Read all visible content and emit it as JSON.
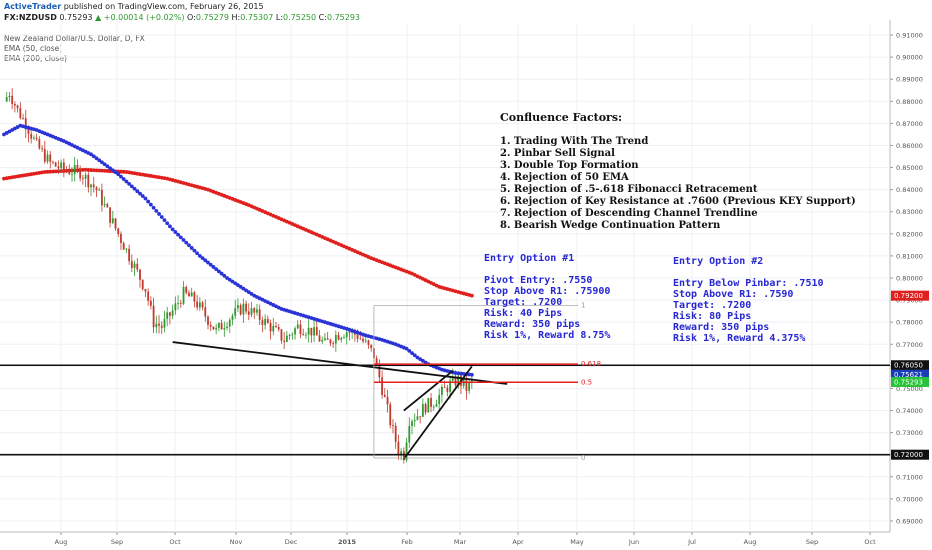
{
  "header": {
    "publisher": "ActiveTrader",
    "published_text": "published on TradingView.com, February 26, 2015",
    "symbol": "FX:NZDUSD",
    "last": "0.75293",
    "change": "+0.00014 (+0.02%)",
    "open_label": "O:",
    "open": "0.75279",
    "high_label": "H:",
    "high": "0.75307",
    "low_label": "L:",
    "low": "0.75250",
    "close_label": "C:",
    "close": "0.75293"
  },
  "legend": {
    "title": "New Zealand Dollar/U.S. Dollar, D, FX",
    "ema50": "EMA (50, close)",
    "ema200": "EMA (200, close)"
  },
  "confluence": {
    "title": "Confluence Factors:",
    "items": [
      "1. Trading With The Trend",
      "2. Pinbar Sell Signal",
      "3. Double Top Formation",
      "4. Rejection of 50 EMA",
      "5. Rejection of .5-.618 Fibonacci Retracement",
      "6. Rejection of Key Resistance at .7600 (Previous KEY Support)",
      "7. Rejection of Descending Channel Trendline",
      "8. Bearish Wedge Continuation Pattern"
    ]
  },
  "entry1": {
    "title": "Entry Option #1",
    "lines": [
      "Pivot Entry: .7550",
      "Stop Above R1: .75900",
      "Target: .7200",
      "Risk: 40 Pips",
      "Reward: 350 pips",
      "Risk 1%, Reward 8.75%"
    ]
  },
  "entry2": {
    "title": "Entry Option #2",
    "lines": [
      "Entry Below Pinbar: .7510",
      "Stop Above R1: .7590",
      "Target: .7200",
      "Risk: 80 Pips",
      "Reward: 350 pips",
      "Risk 1%, Reward 4.375%"
    ]
  },
  "colors": {
    "ema50": "#2a34d6",
    "ema200": "#e0201e",
    "up_candle": "#2e9a2e",
    "down_candle": "#c0392b",
    "resistance": "#111111",
    "fib": "#e02020",
    "last_price": "#29c23a",
    "ema50_tag": "#1a3db8",
    "ema200_tag": "#e0201e"
  },
  "chart_data": {
    "type": "candlestick",
    "symbol": "NZDUSD",
    "timeframe": "D",
    "y_axis": {
      "min": 0.685,
      "max": 0.915,
      "ticks": [
        "0.91000",
        "0.90000",
        "0.89000",
        "0.88000",
        "0.87000",
        "0.86000",
        "0.85000",
        "0.84000",
        "0.83000",
        "0.82000",
        "0.81000",
        "0.80000",
        "0.79000",
        "0.78000",
        "0.77000",
        "0.76000",
        "0.75000",
        "0.74000",
        "0.73000",
        "0.72000",
        "0.71000",
        "0.70000",
        "0.69000"
      ]
    },
    "x_axis": {
      "ticks": [
        "Aug",
        "Sep",
        "Oct",
        "Nov",
        "Dec",
        "2015",
        "Feb",
        "Mar",
        "Apr",
        "May",
        "Jun",
        "Jul",
        "Aug",
        "Sep",
        "Oct"
      ]
    },
    "price_tags": [
      {
        "label": "0.79200",
        "value": 0.792,
        "kind": "ema200"
      },
      {
        "label": "0.76050",
        "value": 0.7605,
        "kind": "line"
      },
      {
        "label": "0.75621",
        "value": 0.75621,
        "kind": "ema50"
      },
      {
        "label": "0.75293",
        "value": 0.75293,
        "kind": "last"
      },
      {
        "label": "0.72000",
        "value": 0.72,
        "kind": "line"
      }
    ],
    "horizontal_lines": [
      {
        "name": "key-resistance",
        "value": 0.7605
      },
      {
        "name": "target-support",
        "value": 0.72
      }
    ],
    "fibonacci": [
      {
        "label": "1",
        "value": 0.7875
      },
      {
        "label": "0.618",
        "value": 0.761
      },
      {
        "label": "0.5",
        "value": 0.7528
      },
      {
        "label": "0",
        "value": 0.7185
      }
    ],
    "ema50": [
      [
        0,
        0.865
      ],
      [
        6,
        0.869
      ],
      [
        12,
        0.867
      ],
      [
        22,
        0.862
      ],
      [
        32,
        0.856
      ],
      [
        42,
        0.847
      ],
      [
        52,
        0.836
      ],
      [
        62,
        0.822
      ],
      [
        72,
        0.81
      ],
      [
        82,
        0.8
      ],
      [
        92,
        0.792
      ],
      [
        102,
        0.786
      ],
      [
        110,
        0.783
      ],
      [
        118,
        0.78
      ],
      [
        126,
        0.777
      ],
      [
        133,
        0.774
      ],
      [
        139,
        0.772
      ],
      [
        144,
        0.77
      ],
      [
        148,
        0.768
      ],
      [
        152,
        0.764
      ],
      [
        156,
        0.761
      ],
      [
        161,
        0.7585
      ],
      [
        166,
        0.757
      ],
      [
        172,
        0.7562
      ]
    ],
    "ema200": [
      [
        0,
        0.845
      ],
      [
        15,
        0.848
      ],
      [
        30,
        0.849
      ],
      [
        45,
        0.848
      ],
      [
        60,
        0.845
      ],
      [
        75,
        0.84
      ],
      [
        90,
        0.833
      ],
      [
        105,
        0.825
      ],
      [
        120,
        0.817
      ],
      [
        135,
        0.809
      ],
      [
        150,
        0.802
      ],
      [
        160,
        0.796
      ],
      [
        172,
        0.792
      ]
    ],
    "closes_anchor": [
      [
        0,
        0.88
      ],
      [
        2,
        0.884
      ],
      [
        5,
        0.876
      ],
      [
        8,
        0.87
      ],
      [
        12,
        0.86
      ],
      [
        17,
        0.852
      ],
      [
        22,
        0.849
      ],
      [
        28,
        0.848
      ],
      [
        34,
        0.84
      ],
      [
        40,
        0.825
      ],
      [
        46,
        0.81
      ],
      [
        52,
        0.795
      ],
      [
        55,
        0.78
      ],
      [
        58,
        0.778
      ],
      [
        62,
        0.785
      ],
      [
        66,
        0.793
      ],
      [
        70,
        0.79
      ],
      [
        74,
        0.783
      ],
      [
        78,
        0.776
      ],
      [
        83,
        0.782
      ],
      [
        88,
        0.787
      ],
      [
        93,
        0.783
      ],
      [
        98,
        0.778
      ],
      [
        103,
        0.772
      ],
      [
        108,
        0.778
      ],
      [
        113,
        0.776
      ],
      [
        118,
        0.77
      ],
      [
        122,
        0.774
      ],
      [
        126,
        0.776
      ],
      [
        130,
        0.774
      ],
      [
        133,
        0.77
      ],
      [
        136,
        0.765
      ],
      [
        139,
        0.75
      ],
      [
        142,
        0.735
      ],
      [
        145,
        0.722
      ],
      [
        147,
        0.72
      ],
      [
        149,
        0.736
      ],
      [
        152,
        0.738
      ],
      [
        155,
        0.742
      ],
      [
        158,
        0.744
      ],
      [
        161,
        0.748
      ],
      [
        164,
        0.752
      ],
      [
        167,
        0.754
      ],
      [
        170,
        0.75
      ],
      [
        172,
        0.7529
      ]
    ]
  }
}
